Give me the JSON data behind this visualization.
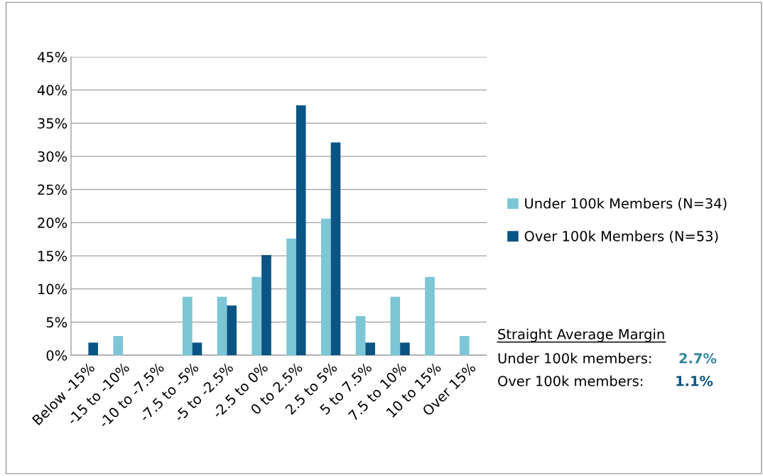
{
  "chart_data": {
    "type": "bar",
    "categories": [
      "Below -15%",
      "-15 to -10%",
      "-10 to -7.5%",
      "-7.5 to -5%",
      "-5 to -2.5%",
      "-2.5 to 0%",
      "0 to 2.5%",
      "2.5 to 5%",
      "5 to 7.5%",
      "7.5 to 10%",
      "10 to 15%",
      "Over 15%"
    ],
    "series": [
      {
        "name": "Under 100k Members (N=34)",
        "color": "#7cc6d6",
        "values": [
          0,
          2.9,
          0,
          8.8,
          8.8,
          11.8,
          17.6,
          20.6,
          5.9,
          8.8,
          11.8,
          2.9
        ]
      },
      {
        "name": "Over 100k Members (N=53)",
        "color": "#0a5583",
        "values": [
          1.9,
          0,
          0,
          1.9,
          7.5,
          15.1,
          37.7,
          32.1,
          1.9,
          1.9,
          0,
          0
        ]
      }
    ],
    "ylim": [
      0,
      45
    ],
    "yticks": [
      {
        "value": 0,
        "label": "0%"
      },
      {
        "value": 5,
        "label": "5%"
      },
      {
        "value": 10,
        "label": "10%"
      },
      {
        "value": 15,
        "label": "15%"
      },
      {
        "value": 20,
        "label": "20%"
      },
      {
        "value": 25,
        "label": "25%"
      },
      {
        "value": 30,
        "label": "30%"
      },
      {
        "value": 35,
        "label": "35%"
      },
      {
        "value": 40,
        "label": "40%"
      },
      {
        "value": 45,
        "label": "45%"
      }
    ],
    "grid": "y",
    "legend": "right",
    "annotations": [
      "Straight Average Margin",
      "Under 100k members:",
      "2.7%",
      "Over 100k members:",
      "1.1%"
    ]
  }
}
